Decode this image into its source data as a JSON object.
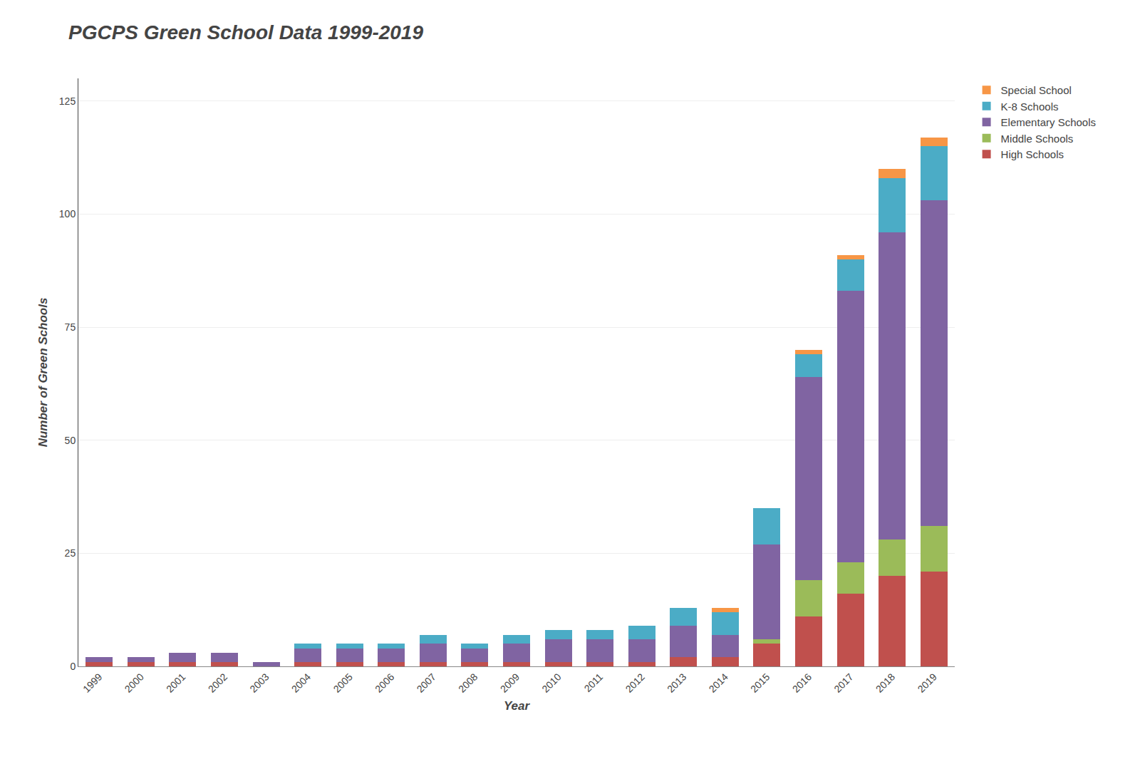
{
  "chart_data": {
    "type": "bar",
    "title": "PGCPS Green School Data 1999-2019",
    "xlabel": "Year",
    "ylabel": "Number of Green Schools",
    "categories": [
      "1999",
      "2000",
      "2001",
      "2002",
      "2003",
      "2004",
      "2005",
      "2006",
      "2007",
      "2008",
      "2009",
      "2010",
      "2011",
      "2012",
      "2013",
      "2014",
      "2015",
      "2016",
      "2017",
      "2018",
      "2019"
    ],
    "series": [
      {
        "name": "High Schools",
        "color": "#c0504d",
        "values": [
          1,
          1,
          1,
          1,
          0,
          1,
          1,
          1,
          1,
          1,
          1,
          1,
          1,
          1,
          2,
          2,
          5,
          11,
          16,
          20,
          21
        ]
      },
      {
        "name": "Middle Schools",
        "color": "#9bbb59",
        "values": [
          0,
          0,
          0,
          0,
          0,
          0,
          0,
          0,
          0,
          0,
          0,
          0,
          0,
          0,
          0,
          0,
          1,
          8,
          7,
          8,
          10
        ]
      },
      {
        "name": "Elementary Schools",
        "color": "#8064a2",
        "values": [
          1,
          1,
          2,
          2,
          1,
          3,
          3,
          3,
          4,
          3,
          4,
          5,
          5,
          5,
          7,
          5,
          21,
          45,
          60,
          68,
          72
        ]
      },
      {
        "name": "K-8 Schools",
        "color": "#4bacc6",
        "values": [
          0,
          0,
          0,
          0,
          0,
          1,
          1,
          1,
          2,
          1,
          2,
          2,
          2,
          3,
          4,
          5,
          8,
          5,
          7,
          12,
          12
        ]
      },
      {
        "name": "Special School",
        "color": "#f79646",
        "values": [
          0,
          0,
          0,
          0,
          0,
          0,
          0,
          0,
          0,
          0,
          0,
          0,
          0,
          0,
          0,
          1,
          0,
          1,
          1,
          2,
          2
        ]
      }
    ],
    "stacked": true,
    "ylim": [
      0,
      130
    ],
    "yticks": [
      0,
      25,
      50,
      75,
      100,
      125
    ],
    "grid": true,
    "legend": "right"
  }
}
